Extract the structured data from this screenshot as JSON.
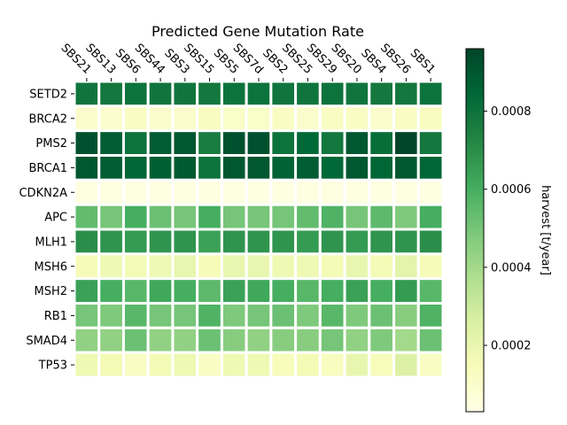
{
  "chart_data": {
    "type": "heatmap",
    "title": "Predicted Gene Mutation Rate",
    "xlabel": "",
    "ylabel": "",
    "x_axis_position": "top",
    "columns": [
      "SBS21",
      "SBS13",
      "SBS6",
      "SBS44",
      "SBS3",
      "SBS15",
      "SBS5",
      "SBS7d",
      "SBS2",
      "SBS25",
      "SBS29",
      "SBS20",
      "SBS4",
      "SBS26",
      "SBS1"
    ],
    "rows": [
      "SETD2",
      "BRCA2",
      "PMS2",
      "BRCA1",
      "CDKN2A",
      "APC",
      "MLH1",
      "MSH6",
      "MSH2",
      "RB1",
      "SMAD4",
      "TP53"
    ],
    "values": [
      [
        0.00079,
        0.00078,
        0.0008,
        0.00079,
        0.00079,
        0.00078,
        0.0008,
        0.0008,
        0.00079,
        0.00079,
        0.0008,
        0.00079,
        0.00078,
        0.00078,
        0.0008
      ],
      [
        0.0001,
        9e-05,
        0.00012,
        0.0001,
        0.0001,
        0.00013,
        0.00011,
        0.00011,
        0.00012,
        0.0001,
        0.00012,
        0.00012,
        0.0001,
        0.00012,
        0.00013
      ],
      [
        0.00092,
        0.00088,
        0.0008,
        0.00088,
        0.0009,
        0.00076,
        0.00092,
        0.00092,
        0.0008,
        0.00084,
        0.00078,
        0.0009,
        0.00082,
        0.00096,
        0.00078
      ],
      [
        0.0009,
        0.00088,
        0.00085,
        0.00087,
        0.00089,
        0.0008,
        0.0009,
        0.0009,
        0.00086,
        0.00088,
        0.00084,
        0.0009,
        0.00085,
        0.0009,
        0.00085
      ],
      [
        4e-05,
        4e-05,
        4e-05,
        4e-05,
        4e-05,
        4e-05,
        4e-05,
        4e-05,
        4e-05,
        4e-05,
        4e-05,
        4e-05,
        4e-05,
        4e-05,
        4e-05
      ],
      [
        0.00054,
        0.0005,
        0.0006,
        0.00052,
        0.0005,
        0.0006,
        0.0005,
        0.0005,
        0.0005,
        0.00054,
        0.00058,
        0.0005,
        0.00055,
        0.00048,
        0.0006
      ],
      [
        0.0007,
        0.00068,
        0.00066,
        0.00068,
        0.00068,
        0.00064,
        0.00068,
        0.00068,
        0.00068,
        0.00066,
        0.00068,
        0.00066,
        0.00068,
        0.00068,
        0.0007
      ],
      [
        0.00015,
        0.00018,
        0.00016,
        0.00018,
        0.0002,
        0.00015,
        0.0002,
        0.0002,
        0.00018,
        0.00018,
        0.00016,
        0.0002,
        0.00016,
        0.00022,
        0.00015
      ],
      [
        0.00064,
        0.0006,
        0.00056,
        0.00062,
        0.0006,
        0.00055,
        0.00064,
        0.00062,
        0.0006,
        0.00056,
        0.0006,
        0.00064,
        0.0006,
        0.00066,
        0.00056
      ],
      [
        0.0005,
        0.00048,
        0.00056,
        0.0005,
        0.0005,
        0.00058,
        0.00048,
        0.0005,
        0.00052,
        0.00048,
        0.00056,
        0.00048,
        0.00052,
        0.00046,
        0.00058
      ],
      [
        0.00044,
        0.00044,
        0.00052,
        0.00044,
        0.00044,
        0.00052,
        0.00046,
        0.00044,
        0.00046,
        0.00046,
        0.0005,
        0.00044,
        0.00048,
        0.0004,
        0.00052
      ],
      [
        0.00018,
        0.00016,
        0.00012,
        0.00016,
        0.00018,
        0.00012,
        0.00018,
        0.00018,
        0.00014,
        0.00016,
        0.00013,
        0.0002,
        0.00014,
        0.00025,
        0.00012
      ]
    ],
    "colorscale": [
      "#ffffe5",
      "#f7fcb9",
      "#d9f0a3",
      "#addd8e",
      "#78c679",
      "#41ab5d",
      "#238443",
      "#006837",
      "#004529"
    ],
    "colorbar": {
      "label": "harvest [t/year]",
      "range": [
        3e-05,
        0.00096
      ],
      "ticks": [
        0.0002,
        0.0004,
        0.0006,
        0.0008
      ],
      "tick_labels": [
        "0.0002",
        "0.0004",
        "0.0006",
        "0.0008"
      ]
    },
    "cell_border_color": "#ffffff",
    "grid": false
  }
}
